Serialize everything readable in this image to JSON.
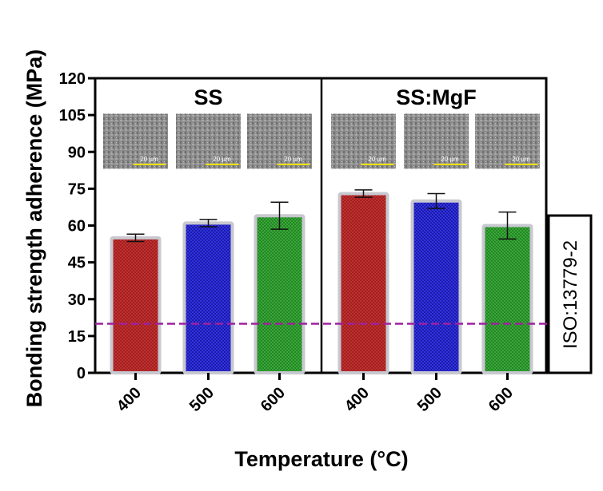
{
  "chart_data": {
    "type": "bar",
    "ylabel": "Bonding strength adherence (MPa)",
    "xlabel": "Temperature (°C)",
    "ylim": [
      0,
      120
    ],
    "yticks": [
      "0",
      "15",
      "30",
      "45",
      "60",
      "75",
      "90",
      "105",
      "120"
    ],
    "reference_line": {
      "value": 20,
      "label": "ISO:13779-2",
      "color": "#a020a0"
    },
    "panels": [
      {
        "title": "SS",
        "categories": [
          "400",
          "500",
          "600"
        ],
        "values": [
          55,
          61,
          64
        ],
        "errors": [
          1.5,
          1.5,
          5.5
        ],
        "colors": [
          "#c03030",
          "#2525d8",
          "#30a030"
        ]
      },
      {
        "title": "SS:MgF",
        "categories": [
          "400",
          "500",
          "600"
        ],
        "values": [
          73,
          70,
          60
        ],
        "errors": [
          1.5,
          3,
          5.5
        ],
        "colors": [
          "#c03030",
          "#2525d8",
          "#30a030"
        ]
      }
    ],
    "micrograph_scale_label": "20 µm",
    "grid": false
  }
}
